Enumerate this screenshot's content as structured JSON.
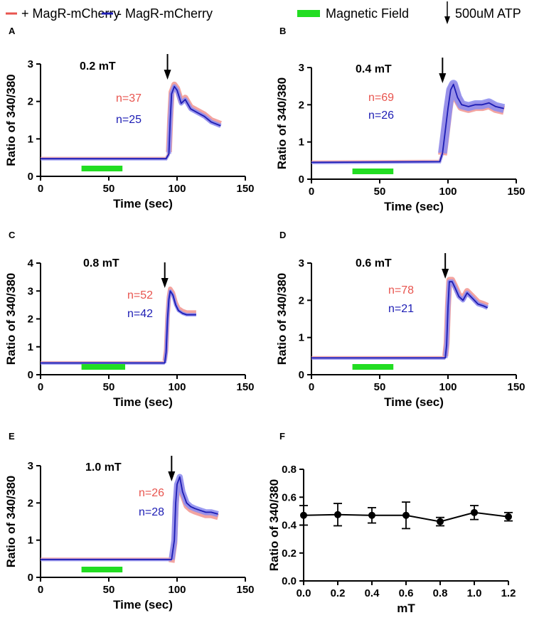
{
  "legend": {
    "items": [
      {
        "label": "+ MagR-mCherry",
        "color": "#e8544e",
        "kind": "line"
      },
      {
        "label": "- MagR-mCherry",
        "color": "#1c1cb4",
        "kind": "line"
      },
      {
        "label": "Magnetic Field",
        "color": "#22dd22",
        "kind": "bar"
      },
      {
        "label": "500uM ATP",
        "color": "#000000",
        "kind": "arrow"
      }
    ]
  },
  "colors": {
    "plus_band": "#f29a96",
    "minus_band": "#8e8ef0",
    "plus_text": "#e8544e",
    "minus_text": "#1c1cb4",
    "field_bar": "#22dd22",
    "minus_line": "#1c1cb4"
  },
  "chart_data": [
    {
      "panel": "A",
      "type": "line",
      "field_label": "0.2 mT",
      "xlabel": "Time (sec)",
      "ylabel": "Ratio of 340/380",
      "xlim": [
        0,
        150
      ],
      "ylim": [
        0,
        3
      ],
      "xticks": [
        "0",
        "50",
        "100",
        "150"
      ],
      "yticks": [
        "0",
        "1",
        "2",
        "3"
      ],
      "n_plus": "n=37",
      "n_minus": "n=25",
      "field_range": [
        30,
        60
      ],
      "atp_time": 93,
      "trace": {
        "x": [
          0,
          92,
          94,
          95,
          96,
          98,
          100,
          103,
          106,
          110,
          115,
          120,
          125,
          132
        ],
        "y": [
          0.47,
          0.47,
          0.6,
          1.5,
          2.2,
          2.4,
          2.3,
          1.95,
          2.05,
          1.8,
          1.7,
          1.6,
          1.45,
          1.35
        ]
      },
      "band_minus": 0.06,
      "band_plus": 0.08,
      "plus_offset": 0.05
    },
    {
      "panel": "B",
      "type": "line",
      "field_label": "0.4 mT",
      "xlabel": "Time (sec)",
      "ylabel": "Ratio of 340/380",
      "xlim": [
        0,
        150
      ],
      "ylim": [
        0,
        3
      ],
      "xticks": [
        "0",
        "50",
        "100",
        "150"
      ],
      "yticks": [
        "0",
        "1",
        "2",
        "3"
      ],
      "n_plus": "n=69",
      "n_minus": "n=26",
      "field_range": [
        30,
        60
      ],
      "atp_time": 96,
      "trace": {
        "x": [
          0,
          94,
          96,
          98,
          100,
          102,
          104,
          107,
          110,
          115,
          120,
          125,
          130,
          135,
          141
        ],
        "y": [
          0.45,
          0.47,
          0.7,
          1.3,
          1.9,
          2.4,
          2.55,
          2.2,
          2.0,
          1.95,
          2.0,
          2.0,
          2.05,
          1.95,
          1.9
        ]
      },
      "band_minus": 0.12,
      "band_plus": 0.12,
      "plus_offset": -0.05
    },
    {
      "panel": "C",
      "type": "line",
      "field_label": "0.8 mT",
      "xlabel": "Time (sec)",
      "ylabel": "Ratio of 340/380",
      "xlim": [
        0,
        150
      ],
      "ylim": [
        0,
        4
      ],
      "xticks": [
        "0",
        "50",
        "100",
        "150"
      ],
      "yticks": [
        "0",
        "1",
        "2",
        "3",
        "4"
      ],
      "n_plus": "n=52",
      "n_minus": "n=42",
      "field_range": [
        30,
        62
      ],
      "atp_time": 91,
      "trace": {
        "x": [
          0,
          91,
          92,
          93,
          94,
          95,
          97,
          99,
          101,
          104,
          107,
          110,
          114
        ],
        "y": [
          0.42,
          0.42,
          0.8,
          2.0,
          2.7,
          3.0,
          2.85,
          2.5,
          2.3,
          2.2,
          2.15,
          2.15,
          2.15
        ]
      },
      "band_minus": 0.06,
      "band_plus": 0.08,
      "plus_offset": 0.08
    },
    {
      "panel": "D",
      "type": "line",
      "field_label": "0.6 mT",
      "xlabel": "Time (sec)",
      "ylabel": "Ratio of 340/380",
      "xlim": [
        0,
        150
      ],
      "ylim": [
        0,
        3
      ],
      "xticks": [
        "0",
        "50",
        "100",
        "150"
      ],
      "yticks": [
        "0",
        "1",
        "2",
        "3"
      ],
      "n_plus": "n=78",
      "n_minus": "n=21",
      "field_range": [
        30,
        60
      ],
      "atp_time": 98,
      "trace": {
        "x": [
          0,
          98,
          99,
          100,
          101,
          103,
          105,
          108,
          111,
          114,
          118,
          122,
          126,
          129
        ],
        "y": [
          0.45,
          0.45,
          0.8,
          1.8,
          2.5,
          2.5,
          2.35,
          2.1,
          2.0,
          2.2,
          2.05,
          1.9,
          1.85,
          1.8
        ]
      },
      "band_minus": 0.06,
      "band_plus": 0.08,
      "plus_offset": 0.05
    },
    {
      "panel": "E",
      "type": "line",
      "field_label": "1.0 mT",
      "xlabel": "Time (sec)",
      "ylabel": "Ratio of 340/380",
      "xlim": [
        0,
        150
      ],
      "ylim": [
        0,
        3
      ],
      "xticks": [
        "0",
        "50",
        "100",
        "150"
      ],
      "yticks": [
        "0",
        "1",
        "2",
        "3"
      ],
      "n_plus": "n=26",
      "n_minus": "n=28",
      "field_range": [
        30,
        60
      ],
      "atp_time": 96,
      "trace": {
        "x": [
          0,
          96,
          98,
          99,
          100,
          102,
          104,
          107,
          110,
          113,
          117,
          121,
          125,
          130
        ],
        "y": [
          0.48,
          0.48,
          1.0,
          2.0,
          2.5,
          2.7,
          2.3,
          2.0,
          1.9,
          1.85,
          1.8,
          1.75,
          1.75,
          1.7
        ]
      },
      "band_minus": 0.08,
      "band_plus": 0.08,
      "plus_offset": -0.08
    },
    {
      "panel": "F",
      "type": "scatter",
      "xlabel": "mT",
      "ylabel": "Ratio of 340/380",
      "xlim": [
        0,
        1.2
      ],
      "ylim": [
        0,
        0.8
      ],
      "xticks": [
        "0.0",
        "0.2",
        "0.4",
        "0.6",
        "0.8",
        "1.0",
        "1.2"
      ],
      "yticks": [
        "0.0",
        "0.2",
        "0.4",
        "0.6",
        "0.8"
      ],
      "x": [
        0.0,
        0.2,
        0.4,
        0.6,
        0.8,
        1.0,
        1.2
      ],
      "y": [
        0.47,
        0.475,
        0.47,
        0.47,
        0.425,
        0.49,
        0.46
      ],
      "err": [
        0.07,
        0.08,
        0.055,
        0.095,
        0.03,
        0.05,
        0.03
      ]
    }
  ]
}
